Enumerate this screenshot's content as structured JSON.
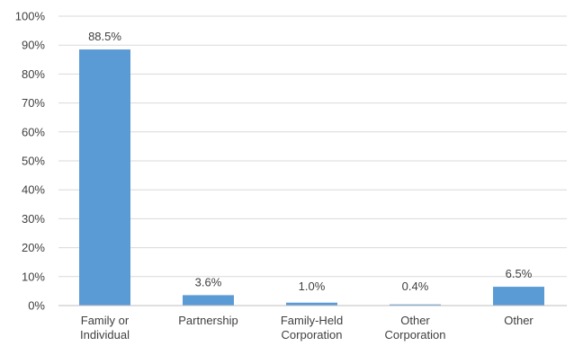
{
  "chart_data": {
    "type": "bar",
    "categories": [
      [
        "Family or",
        "Individual"
      ],
      [
        "Partnership"
      ],
      [
        "Family-Held",
        "Corporation"
      ],
      [
        "Other",
        "Corporation"
      ],
      [
        "Other"
      ]
    ],
    "values": [
      88.5,
      3.6,
      1.0,
      0.4,
      6.5
    ],
    "data_labels": [
      "88.5%",
      "3.6%",
      "1.0%",
      "0.4%",
      "6.5%"
    ],
    "y_ticks": [
      "0%",
      "10%",
      "20%",
      "30%",
      "40%",
      "50%",
      "60%",
      "70%",
      "80%",
      "90%",
      "100%"
    ],
    "ylim": [
      0,
      100
    ],
    "grid": true,
    "bar_color": "#5b9bd5",
    "title": "",
    "xlabel": "",
    "ylabel": ""
  }
}
